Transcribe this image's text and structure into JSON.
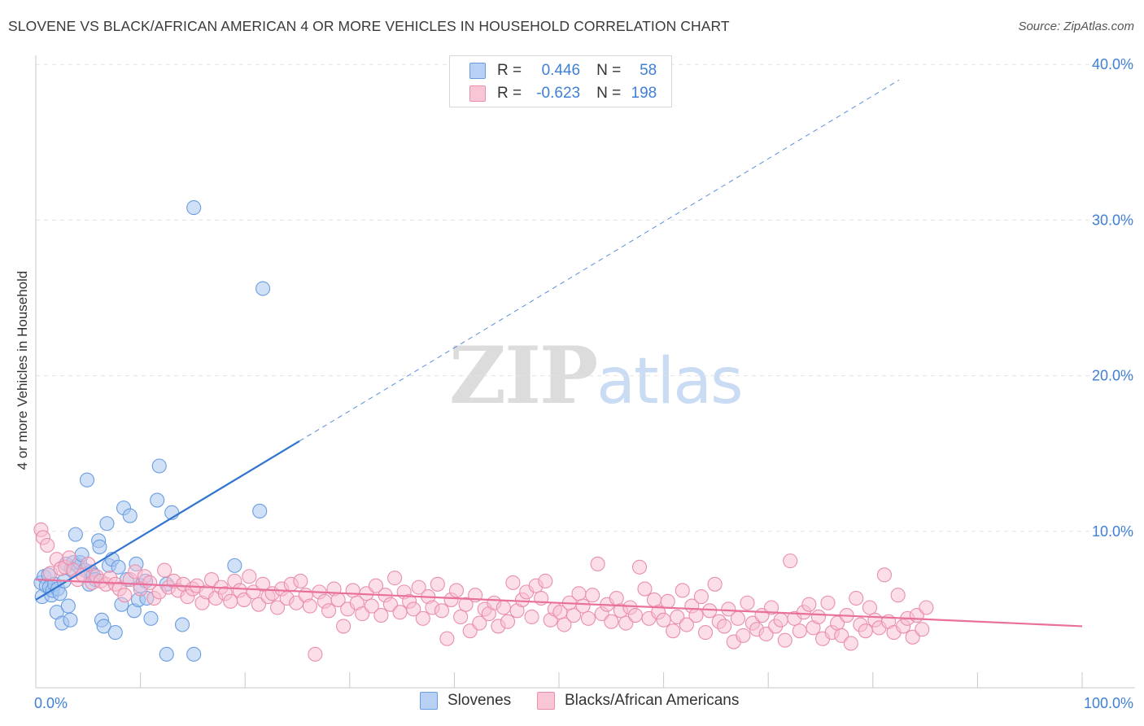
{
  "title": "SLOVENE VS BLACK/AFRICAN AMERICAN 4 OR MORE VEHICLES IN HOUSEHOLD CORRELATION CHART",
  "source": "Source: ZipAtlas.com",
  "watermark": {
    "zip": "ZIP",
    "atlas": "atlas"
  },
  "legend": {
    "r_label": "R =",
    "n_label": "N =",
    "series": [
      {
        "name": "Slovenes",
        "r": "0.446",
        "n": "58",
        "color": "#6a9de0"
      },
      {
        "name": "Blacks/African Americans",
        "r": "-0.623",
        "n": "198",
        "color": "#ea8fab"
      }
    ]
  },
  "colors": {
    "blue_line": "#2f74d0",
    "pink_line": "#e8709a",
    "axis_text": "#3f7fd4",
    "grid": "#e3e3e3"
  },
  "chart_data": {
    "type": "scatter",
    "title": "SLOVENE VS BLACK/AFRICAN AMERICAN 4 OR MORE VEHICLES IN HOUSEHOLD CORRELATION CHART",
    "xlabel": "",
    "ylabel": "4 or more Vehicles in Household",
    "xlim": [
      0,
      100
    ],
    "ylim": [
      0,
      42
    ],
    "x_tick_labels": [
      "0.0%",
      "100.0%"
    ],
    "y_ticks": [
      10,
      20,
      30,
      40
    ],
    "y_tick_labels": [
      "10.0%",
      "20.0%",
      "30.0%",
      "40.0%"
    ],
    "grid": true,
    "series": [
      {
        "name": "Slovenes",
        "r": 0.446,
        "n": 58,
        "trend": {
          "x0": 0,
          "y0": 5.6,
          "x1": 25.2,
          "y1": 15.8,
          "dashed_to_x": 82.5,
          "dashed_to_y": 39.0
        },
        "points": [
          [
            0.5,
            6.7
          ],
          [
            0.6,
            5.8
          ],
          [
            0.8,
            7.1
          ],
          [
            1.0,
            6.5
          ],
          [
            1.2,
            7.2
          ],
          [
            1.3,
            6.4
          ],
          [
            1.5,
            5.9
          ],
          [
            1.6,
            6.2
          ],
          [
            1.8,
            6.6
          ],
          [
            2.0,
            4.8
          ],
          [
            2.1,
            6.3
          ],
          [
            2.3,
            6.0
          ],
          [
            2.5,
            4.1
          ],
          [
            2.7,
            6.8
          ],
          [
            2.9,
            7.9
          ],
          [
            3.1,
            5.2
          ],
          [
            3.3,
            4.3
          ],
          [
            3.4,
            7.6
          ],
          [
            3.6,
            8.0
          ],
          [
            3.8,
            9.8
          ],
          [
            4.0,
            7.8
          ],
          [
            4.2,
            8.0
          ],
          [
            4.4,
            8.5
          ],
          [
            4.7,
            7.5
          ],
          [
            4.9,
            13.3
          ],
          [
            5.1,
            6.6
          ],
          [
            5.3,
            7.4
          ],
          [
            5.5,
            7.2
          ],
          [
            5.7,
            6.9
          ],
          [
            6.0,
            9.4
          ],
          [
            6.1,
            9.0
          ],
          [
            6.3,
            4.3
          ],
          [
            6.5,
            3.9
          ],
          [
            6.8,
            10.5
          ],
          [
            7.0,
            7.8
          ],
          [
            7.3,
            8.2
          ],
          [
            7.6,
            3.5
          ],
          [
            7.9,
            7.7
          ],
          [
            8.2,
            5.3
          ],
          [
            8.4,
            11.5
          ],
          [
            8.7,
            6.9
          ],
          [
            9.0,
            11.0
          ],
          [
            9.4,
            4.9
          ],
          [
            9.6,
            7.9
          ],
          [
            9.8,
            5.6
          ],
          [
            10.0,
            6.5
          ],
          [
            10.5,
            6.8
          ],
          [
            10.6,
            5.7
          ],
          [
            11.0,
            4.4
          ],
          [
            11.6,
            12.0
          ],
          [
            11.8,
            14.2
          ],
          [
            12.5,
            6.6
          ],
          [
            13.0,
            11.2
          ],
          [
            12.5,
            2.1
          ],
          [
            14.0,
            4.0
          ],
          [
            15.1,
            30.8
          ],
          [
            15.1,
            2.1
          ],
          [
            21.7,
            25.6
          ],
          [
            21.4,
            11.3
          ],
          [
            19.0,
            7.8
          ]
        ]
      },
      {
        "name": "Blacks/African Americans",
        "r": -0.623,
        "n": 198,
        "trend": {
          "x0": 0,
          "y0": 6.9,
          "x1": 100,
          "y1": 3.9
        },
        "points": [
          [
            0.5,
            10.1
          ],
          [
            0.7,
            9.6
          ],
          [
            1.1,
            9.1
          ],
          [
            1.4,
            7.3
          ],
          [
            2.0,
            8.2
          ],
          [
            2.4,
            7.6
          ],
          [
            2.8,
            7.7
          ],
          [
            3.2,
            8.3
          ],
          [
            3.6,
            7.5
          ],
          [
            4.0,
            6.9
          ],
          [
            4.5,
            7.2
          ],
          [
            5.0,
            7.9
          ],
          [
            5.4,
            6.7
          ],
          [
            5.8,
            7.1
          ],
          [
            6.2,
            6.8
          ],
          [
            6.7,
            6.6
          ],
          [
            7.1,
            7.0
          ],
          [
            7.6,
            6.6
          ],
          [
            8.0,
            6.3
          ],
          [
            8.5,
            5.9
          ],
          [
            9.0,
            6.9
          ],
          [
            9.5,
            7.4
          ],
          [
            10.0,
            6.3
          ],
          [
            10.4,
            7.1
          ],
          [
            10.9,
            6.7
          ],
          [
            11.3,
            5.7
          ],
          [
            11.8,
            6.1
          ],
          [
            12.3,
            7.5
          ],
          [
            12.7,
            6.4
          ],
          [
            13.2,
            6.8
          ],
          [
            13.6,
            6.2
          ],
          [
            14.1,
            6.6
          ],
          [
            14.5,
            5.8
          ],
          [
            15.0,
            6.3
          ],
          [
            15.4,
            6.5
          ],
          [
            15.9,
            5.4
          ],
          [
            16.3,
            6.1
          ],
          [
            16.8,
            6.9
          ],
          [
            17.2,
            5.7
          ],
          [
            17.7,
            6.4
          ],
          [
            18.1,
            6.0
          ],
          [
            18.6,
            5.5
          ],
          [
            19.0,
            6.8
          ],
          [
            19.5,
            6.2
          ],
          [
            19.9,
            5.6
          ],
          [
            20.4,
            7.1
          ],
          [
            20.8,
            6.1
          ],
          [
            21.3,
            5.3
          ],
          [
            21.7,
            6.6
          ],
          [
            22.2,
            5.8
          ],
          [
            22.6,
            6.0
          ],
          [
            23.1,
            5.1
          ],
          [
            23.5,
            6.3
          ],
          [
            24.0,
            5.7
          ],
          [
            24.4,
            6.6
          ],
          [
            24.9,
            5.4
          ],
          [
            25.3,
            6.8
          ],
          [
            25.8,
            5.9
          ],
          [
            26.2,
            5.2
          ],
          [
            26.7,
            2.1
          ],
          [
            27.1,
            6.1
          ],
          [
            27.6,
            5.5
          ],
          [
            28.0,
            4.9
          ],
          [
            28.5,
            6.3
          ],
          [
            28.9,
            5.6
          ],
          [
            29.4,
            3.9
          ],
          [
            29.8,
            5.0
          ],
          [
            30.3,
            6.2
          ],
          [
            30.7,
            5.4
          ],
          [
            31.2,
            4.7
          ],
          [
            31.6,
            6.0
          ],
          [
            32.1,
            5.2
          ],
          [
            32.5,
            6.5
          ],
          [
            33.0,
            4.6
          ],
          [
            33.4,
            5.9
          ],
          [
            33.9,
            5.3
          ],
          [
            34.3,
            7.0
          ],
          [
            34.8,
            4.8
          ],
          [
            35.2,
            6.1
          ],
          [
            35.7,
            5.5
          ],
          [
            36.1,
            5.0
          ],
          [
            36.6,
            6.4
          ],
          [
            37.0,
            4.4
          ],
          [
            37.5,
            5.8
          ],
          [
            37.9,
            5.1
          ],
          [
            38.4,
            6.6
          ],
          [
            38.8,
            4.9
          ],
          [
            39.3,
            3.1
          ],
          [
            39.7,
            5.6
          ],
          [
            40.2,
            6.2
          ],
          [
            40.6,
            4.5
          ],
          [
            41.1,
            5.3
          ],
          [
            41.5,
            3.6
          ],
          [
            42.0,
            5.9
          ],
          [
            42.4,
            4.1
          ],
          [
            42.9,
            5.0
          ],
          [
            43.3,
            4.7
          ],
          [
            43.8,
            5.4
          ],
          [
            44.2,
            3.9
          ],
          [
            44.7,
            5.1
          ],
          [
            45.1,
            4.2
          ],
          [
            45.6,
            6.7
          ],
          [
            46.0,
            4.9
          ],
          [
            46.5,
            5.6
          ],
          [
            46.9,
            6.1
          ],
          [
            47.4,
            4.5
          ],
          [
            47.8,
            6.5
          ],
          [
            48.3,
            5.7
          ],
          [
            48.7,
            6.8
          ],
          [
            49.2,
            4.3
          ],
          [
            49.6,
            5.0
          ],
          [
            50.1,
            4.8
          ],
          [
            50.5,
            4.0
          ],
          [
            51.0,
            5.4
          ],
          [
            51.4,
            4.6
          ],
          [
            51.9,
            6.0
          ],
          [
            52.3,
            5.2
          ],
          [
            52.8,
            4.4
          ],
          [
            53.2,
            5.9
          ],
          [
            53.7,
            7.9
          ],
          [
            54.1,
            4.7
          ],
          [
            54.6,
            5.3
          ],
          [
            55.0,
            4.2
          ],
          [
            55.5,
            5.7
          ],
          [
            55.9,
            4.9
          ],
          [
            56.4,
            4.1
          ],
          [
            56.8,
            5.1
          ],
          [
            57.3,
            4.6
          ],
          [
            57.7,
            7.7
          ],
          [
            58.2,
            6.3
          ],
          [
            58.6,
            4.4
          ],
          [
            59.1,
            5.6
          ],
          [
            59.5,
            4.8
          ],
          [
            60.0,
            4.3
          ],
          [
            60.4,
            5.5
          ],
          [
            60.9,
            3.6
          ],
          [
            61.3,
            4.5
          ],
          [
            61.8,
            6.2
          ],
          [
            62.2,
            4.0
          ],
          [
            62.7,
            5.2
          ],
          [
            63.1,
            4.6
          ],
          [
            63.6,
            5.8
          ],
          [
            64.0,
            3.5
          ],
          [
            64.4,
            4.9
          ],
          [
            64.9,
            6.6
          ],
          [
            65.3,
            4.2
          ],
          [
            65.8,
            3.9
          ],
          [
            66.2,
            5.0
          ],
          [
            66.7,
            2.9
          ],
          [
            67.1,
            4.4
          ],
          [
            67.6,
            3.3
          ],
          [
            68.0,
            5.4
          ],
          [
            68.5,
            4.1
          ],
          [
            68.9,
            3.7
          ],
          [
            69.4,
            4.6
          ],
          [
            69.8,
            3.4
          ],
          [
            70.3,
            5.1
          ],
          [
            70.7,
            3.9
          ],
          [
            71.2,
            4.3
          ],
          [
            71.6,
            3.0
          ],
          [
            72.1,
            8.1
          ],
          [
            72.5,
            4.4
          ],
          [
            73.0,
            3.6
          ],
          [
            73.4,
            4.8
          ],
          [
            73.9,
            5.3
          ],
          [
            74.3,
            3.8
          ],
          [
            74.8,
            4.5
          ],
          [
            75.2,
            3.1
          ],
          [
            75.7,
            5.4
          ],
          [
            76.1,
            3.5
          ],
          [
            76.6,
            4.1
          ],
          [
            77.0,
            3.3
          ],
          [
            77.5,
            4.6
          ],
          [
            77.9,
            2.8
          ],
          [
            78.4,
            5.7
          ],
          [
            78.8,
            4.0
          ],
          [
            79.3,
            3.6
          ],
          [
            79.7,
            5.1
          ],
          [
            80.2,
            4.3
          ],
          [
            80.6,
            3.8
          ],
          [
            81.1,
            7.2
          ],
          [
            81.5,
            4.2
          ],
          [
            82.0,
            3.5
          ],
          [
            82.4,
            5.9
          ],
          [
            82.9,
            3.9
          ],
          [
            83.3,
            4.4
          ],
          [
            83.8,
            3.2
          ],
          [
            84.2,
            4.6
          ],
          [
            84.7,
            3.7
          ],
          [
            85.1,
            5.1
          ]
        ]
      }
    ]
  }
}
